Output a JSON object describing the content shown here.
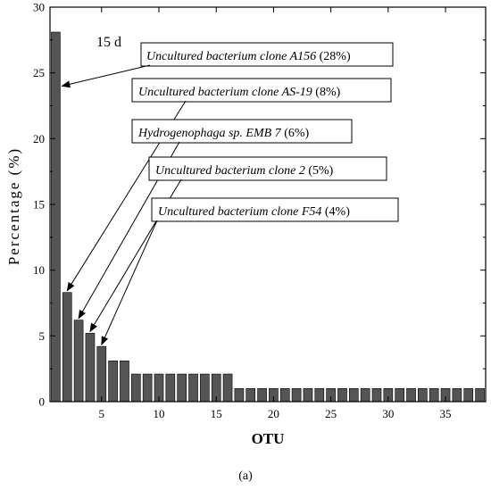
{
  "caption": "(a)",
  "chart_data": {
    "type": "bar",
    "xlabel": "OTU",
    "ylabel": "Percentage (%)",
    "xlim": [
      0.5,
      38.5
    ],
    "ylim": [
      0,
      30
    ],
    "x_ticks": [
      5,
      10,
      15,
      20,
      25,
      30,
      35
    ],
    "y_ticks": [
      0,
      5,
      10,
      15,
      20,
      25,
      30
    ],
    "x": [
      1,
      2,
      3,
      4,
      5,
      6,
      7,
      8,
      9,
      10,
      11,
      12,
      13,
      14,
      15,
      16,
      17,
      18,
      19,
      20,
      21,
      22,
      23,
      24,
      25,
      26,
      27,
      28,
      29,
      30,
      31,
      32,
      33,
      34,
      35,
      36,
      37,
      38
    ],
    "values": [
      28.1,
      8.3,
      6.2,
      5.2,
      4.2,
      3.1,
      3.1,
      2.1,
      2.1,
      2.1,
      2.1,
      2.1,
      2.1,
      2.1,
      2.1,
      2.1,
      1.0,
      1.0,
      1.0,
      1.0,
      1.0,
      1.0,
      1.0,
      1.0,
      1.0,
      1.0,
      1.0,
      1.0,
      1.0,
      1.0,
      1.0,
      1.0,
      1.0,
      1.0,
      1.0,
      1.0,
      1.0,
      1.0
    ],
    "bar_color": "#555555",
    "inset_label": "15 d",
    "annotations": [
      {
        "name": "Uncultured bacterium clone A156",
        "pct": " (28%)",
        "otu": 1
      },
      {
        "name": "Uncultured bacterium clone AS-19",
        "pct": " (8%)",
        "otu": 2
      },
      {
        "name": "Hydrogenophaga sp. EMB 7",
        "pct": " (6%)",
        "otu": 3
      },
      {
        "name": "Uncultured bacterium clone 2",
        "pct": " (5%)",
        "otu": 4
      },
      {
        "name": "Uncultured bacterium clone F54",
        "pct": " (4%)",
        "otu": 5
      }
    ]
  }
}
